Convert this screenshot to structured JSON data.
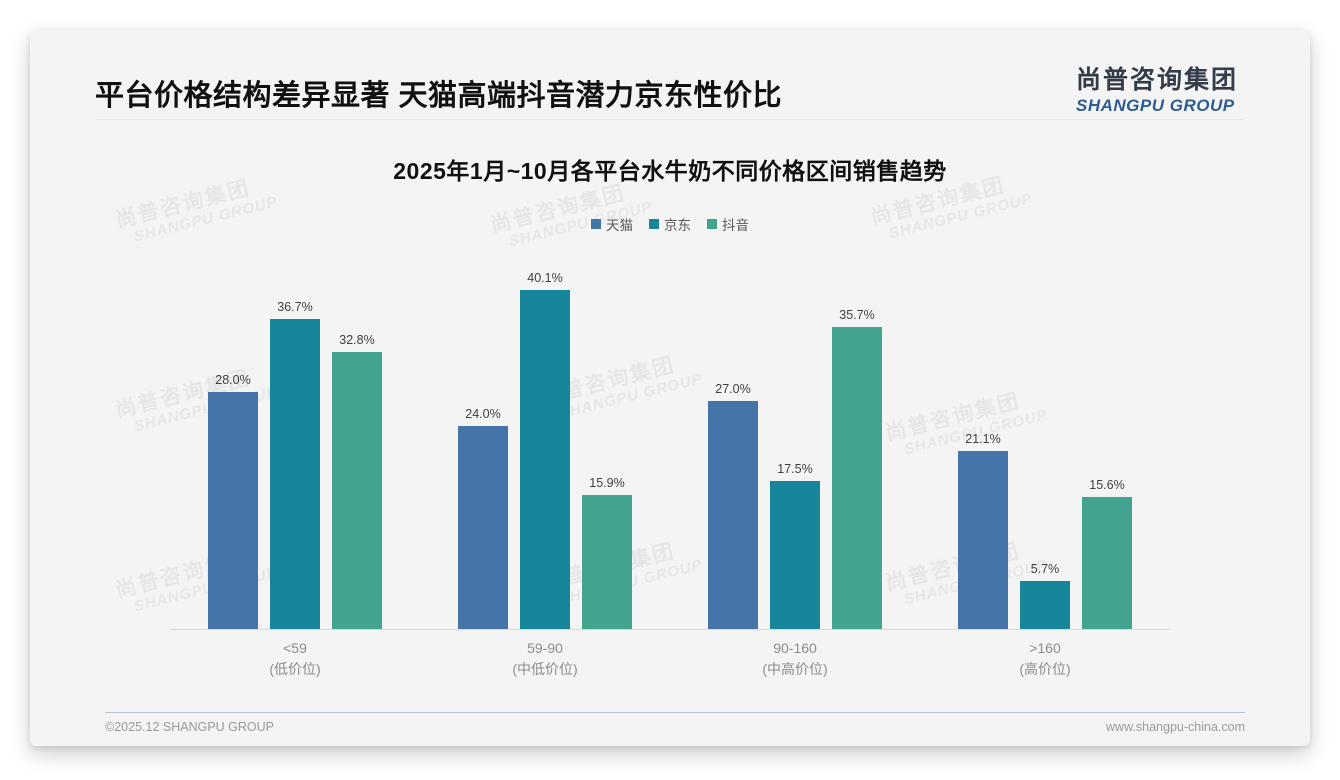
{
  "page": {
    "title": "平台价格结构差异显著 天猫高端抖音潜力京东性价比",
    "logo": {
      "cn": "尚普咨询集团",
      "en": "SHANGPU GROUP"
    },
    "watermark": {
      "line1": "尚普咨询集团",
      "line2": "SHANGPU GROUP"
    },
    "footer": {
      "left": "©2025.12 SHANGPU GROUP",
      "right": "www.shangpu-china.com"
    }
  },
  "chart_data": {
    "type": "bar",
    "title": "2025年1月~10月各平台水牛奶不同价格区间销售趋势",
    "categories": [
      "<59",
      "59-90",
      "90-160",
      ">160"
    ],
    "category_sublabels": [
      "(低价位)",
      "(中低价位)",
      "(中高价位)",
      "(高价位)"
    ],
    "series": [
      {
        "name": "天猫",
        "color": "#4574a9",
        "values": [
          28.0,
          24.0,
          27.0,
          21.1
        ]
      },
      {
        "name": "京东",
        "color": "#18869a",
        "values": [
          36.7,
          40.1,
          17.5,
          5.7
        ]
      },
      {
        "name": "抖音",
        "color": "#42a48f",
        "values": [
          32.8,
          15.9,
          35.7,
          15.6
        ]
      }
    ],
    "value_suffix": "%",
    "ylim": [
      0,
      42
    ],
    "legend_position": "top",
    "grid": false
  }
}
